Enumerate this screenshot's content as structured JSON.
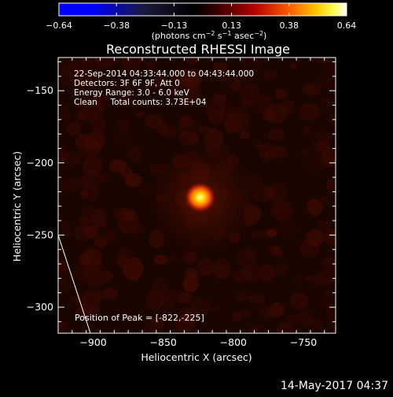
{
  "chart_data": {
    "type": "heatmap",
    "title": "Reconstructed RHESSI Image",
    "xlabel": "Heliocentric X (arcsec)",
    "ylabel": "Heliocentric Y (arcsec)",
    "xlim": [
      -925,
      -727
    ],
    "ylim": [
      -318,
      -127
    ],
    "xticks": [
      -900,
      -850,
      -800,
      -750
    ],
    "yticks": [
      -150,
      -200,
      -250,
      -300
    ],
    "xtick_labels": [
      "−900",
      "−850",
      "−800",
      "−750"
    ],
    "ytick_labels": [
      "−150",
      "−200",
      "−250",
      "−300"
    ],
    "colorbar": {
      "min": -0.64,
      "max": 0.64,
      "ticks": [
        "−0.64",
        "−0.38",
        "−0.13",
        "0.13",
        "0.38",
        "0.64"
      ],
      "unit_parts": [
        "(photons cm",
        "−2",
        " s",
        "−1",
        " asec",
        "−2",
        ")"
      ]
    },
    "peak": {
      "x": -822,
      "y": -225,
      "value": 0.64
    },
    "annotations": [
      "22-Sep-2014 04:33:44.000 to 04:43:44.000",
      "Detectors: 3F 6F 9F, Att 0",
      "Energy Range: 3.0 - 6.0 keV",
      "Clean     Total counts: 3.73E+04"
    ],
    "peak_label": "Position of Peak = [-822,-225]",
    "limb_line": {
      "x1": -925,
      "y1": -250,
      "x2": -902,
      "y2": -318
    }
  },
  "footer": {
    "timestamp": "14-May-2017 04:37"
  },
  "colors": {
    "background": "#000000",
    "axes": "#ffffff",
    "colormap": [
      "#0000ff",
      "#0000ff",
      "#000000",
      "#ff0000",
      "#ffff00",
      "#ffffff"
    ]
  }
}
